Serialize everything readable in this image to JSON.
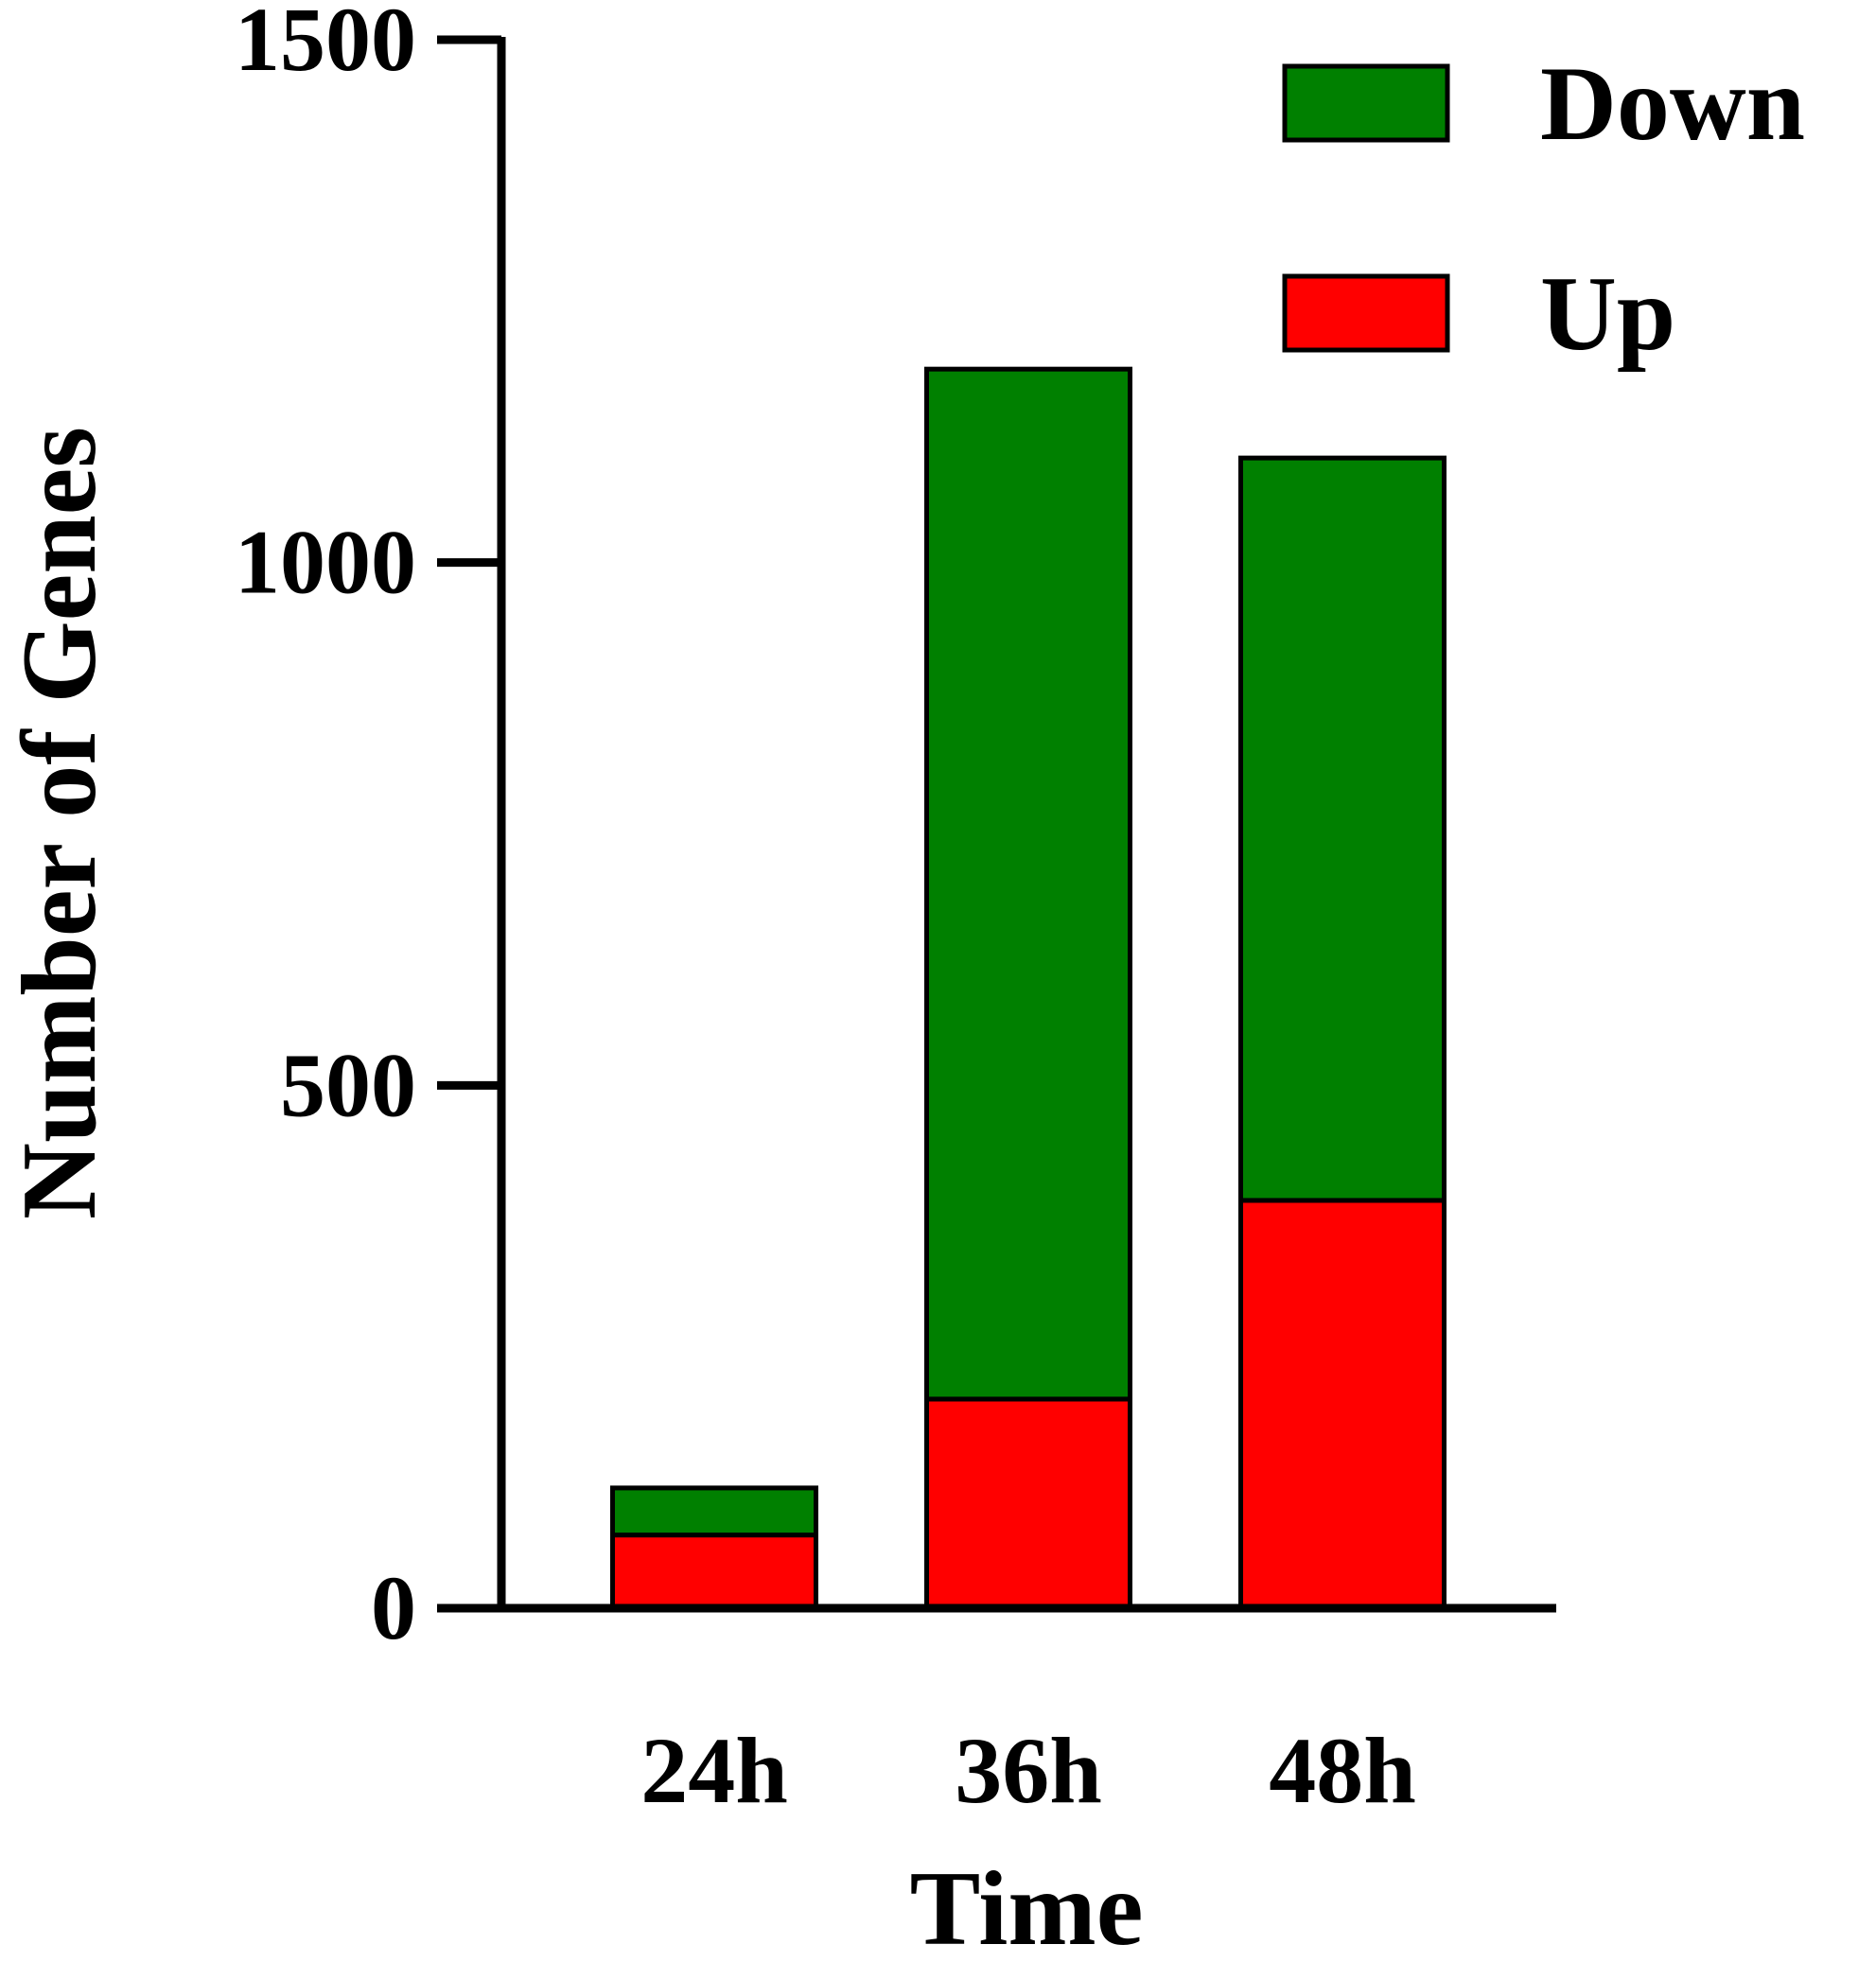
{
  "chart_data": {
    "type": "bar",
    "stacked": true,
    "categories": [
      "24h",
      "36h",
      "48h"
    ],
    "series": [
      {
        "name": "Up",
        "values": [
          70,
          200,
          390
        ],
        "color": "#ff0000"
      },
      {
        "name": "Down",
        "values": [
          45,
          985,
          710
        ],
        "color": "#008000"
      }
    ],
    "xlabel": "Time",
    "ylabel": "Number of Genes",
    "ylim": [
      0,
      1500
    ],
    "yticks": [
      0,
      500,
      1000,
      1500
    ],
    "legend_order": [
      "Down",
      "Up"
    ],
    "legend_position": "top-right",
    "grid": false
  }
}
